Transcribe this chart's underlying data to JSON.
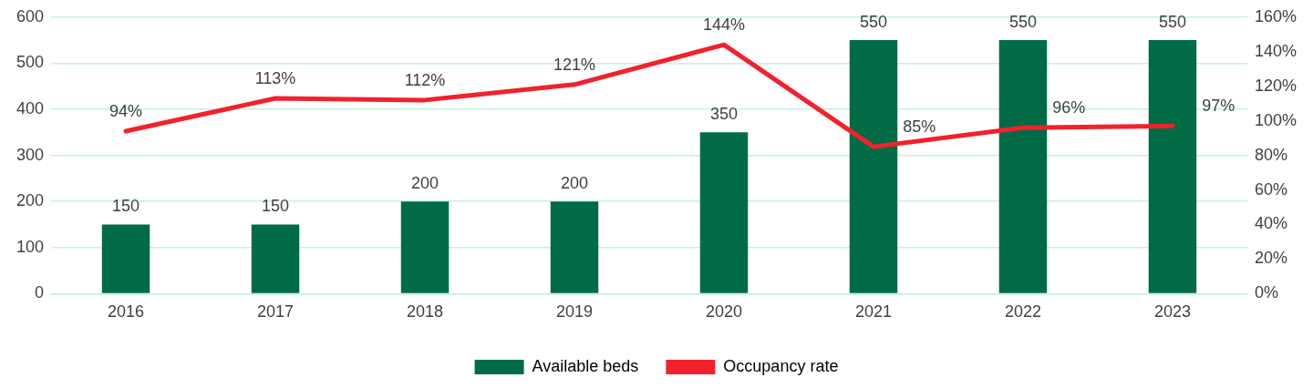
{
  "chart_data": {
    "type": "bar",
    "categories": [
      "2016",
      "2017",
      "2018",
      "2019",
      "2020",
      "2021",
      "2022",
      "2023"
    ],
    "series": [
      {
        "name": "Available beds",
        "color": "#006b45",
        "values": [
          150,
          150,
          200,
          200,
          350,
          550,
          550,
          550
        ],
        "value_labels": [
          "150",
          "150",
          "200",
          "200",
          "350",
          "550",
          "550",
          "550"
        ]
      },
      {
        "name": "Occupancy rate",
        "type": "line",
        "axis": "y2",
        "color": "#f2212e",
        "values": [
          94,
          113,
          112,
          121,
          144,
          85,
          96,
          97
        ],
        "value_labels": [
          "94%",
          "113%",
          "112%",
          "121%",
          "144%",
          "85%",
          "96%",
          "97%"
        ]
      }
    ],
    "ylim": [
      0,
      600
    ],
    "yticks": [
      0,
      100,
      200,
      300,
      400,
      500,
      600
    ],
    "y2lim": [
      0,
      160
    ],
    "y2ticks": [
      {
        "value": 0,
        "label": "0%"
      },
      {
        "value": 20,
        "label": "20%"
      },
      {
        "value": 40,
        "label": "40%"
      },
      {
        "value": 60,
        "label": "60%"
      },
      {
        "value": 80,
        "label": "80%"
      },
      {
        "value": 100,
        "label": "100%"
      },
      {
        "value": 120,
        "label": "120%"
      },
      {
        "value": 140,
        "label": "140%"
      },
      {
        "value": 160,
        "label": "160%"
      }
    ],
    "grid": "y",
    "legend": "bottom",
    "marker": "none",
    "line_style": "solid"
  }
}
